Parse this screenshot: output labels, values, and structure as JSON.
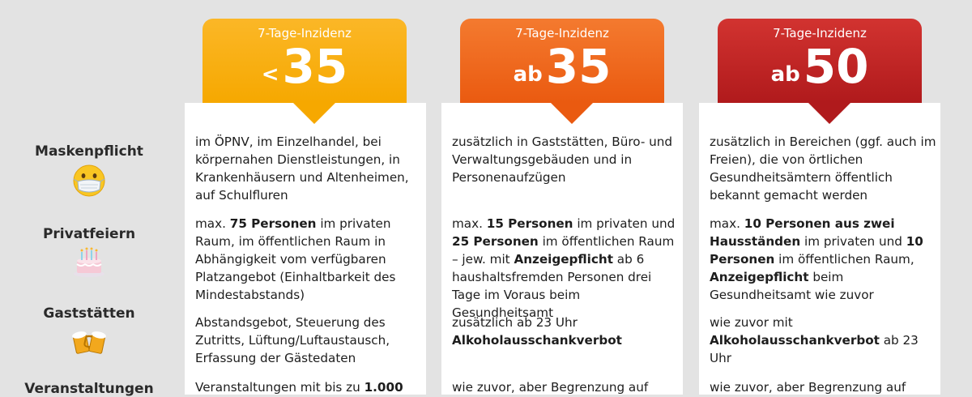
{
  "columns": [
    {
      "label": "7-Tage-Inzidenz",
      "prefix": "<",
      "value": "35",
      "color": "#f6a800"
    },
    {
      "label": "7-Tage-Inzidenz",
      "prefix": "ab",
      "value": "35",
      "color": "#ea5a10"
    },
    {
      "label": "7-Tage-Inzidenz",
      "prefix": "ab",
      "value": "50",
      "color": "#b01a1c"
    }
  ],
  "rows": [
    {
      "label": "Maskenpflicht",
      "icon": "face-with-mask-icon",
      "cells": [
        {
          "parts": [
            {
              "t": "im ÖPNV, im Einzelhandel, bei körpernahen Dienstleistungen, in Krankenhäusern und Altenheimen, auf Schulfluren"
            }
          ]
        },
        {
          "parts": [
            {
              "t": "zusätzlich in Gaststätten, Büro- und Verwaltungsgebäuden und in Personenaufzügen"
            }
          ]
        },
        {
          "parts": [
            {
              "t": "zusätzlich in Bereichen (ggf. auch im Freien), die von örtlichen Gesundheitsämtern öffentlich bekannt gemacht werden"
            }
          ]
        }
      ]
    },
    {
      "label": "Privatfeiern",
      "icon": "birthday-cake-icon",
      "cells": [
        {
          "parts": [
            {
              "t": "max. "
            },
            {
              "t": "75 Personen",
              "b": true
            },
            {
              "t": " im privaten Raum, im öffentlichen Raum in Abhängigkeit vom verfügbaren Platzangebot (Einhaltbarkeit des Mindestabstands)"
            }
          ]
        },
        {
          "parts": [
            {
              "t": "max. "
            },
            {
              "t": "15 Personen",
              "b": true
            },
            {
              "t": " im privaten und "
            },
            {
              "t": "25 Personen",
              "b": true
            },
            {
              "t": " im öffentlichen Raum – jew. mit "
            },
            {
              "t": "Anzeigepflicht",
              "b": true
            },
            {
              "t": " ab 6 haushaltsfremden Personen drei Tage im Voraus beim Gesundheitsamt"
            }
          ]
        },
        {
          "parts": [
            {
              "t": "max. "
            },
            {
              "t": "10 Personen aus zwei Hausständen",
              "b": true
            },
            {
              "t": " im privaten und "
            },
            {
              "t": "10 Personen",
              "b": true
            },
            {
              "t": " im öffentlichen Raum, "
            },
            {
              "t": "Anzeigepflicht",
              "b": true
            },
            {
              "t": " beim Gesundheitsamt wie zuvor"
            }
          ]
        }
      ]
    },
    {
      "label": "Gaststätten",
      "icon": "beer-mugs-icon",
      "cells": [
        {
          "parts": [
            {
              "t": "Abstandsgebot, Steuerung des Zutritts, Lüftung/Luftaustausch, Erfassung der Gästedaten"
            }
          ]
        },
        {
          "parts": [
            {
              "t": "zusätzlich ab 23 Uhr "
            },
            {
              "t": "Alkoholausschankverbot",
              "b": true
            }
          ]
        },
        {
          "parts": [
            {
              "t": "wie zuvor mit "
            },
            {
              "t": "Alkoholausschankverbot",
              "b": true
            },
            {
              "t": " ab 23 Uhr"
            }
          ]
        }
      ]
    },
    {
      "label": "Veranstaltungen",
      "icon": "",
      "cells": [
        {
          "parts": [
            {
              "t": "Veranstaltungen mit bis zu "
            },
            {
              "t": "1.000",
              "b": true
            }
          ]
        },
        {
          "parts": [
            {
              "t": "wie zuvor, aber Begrenzung auf"
            }
          ]
        },
        {
          "parts": [
            {
              "t": "wie zuvor, aber Begrenzung auf"
            }
          ]
        }
      ]
    }
  ]
}
